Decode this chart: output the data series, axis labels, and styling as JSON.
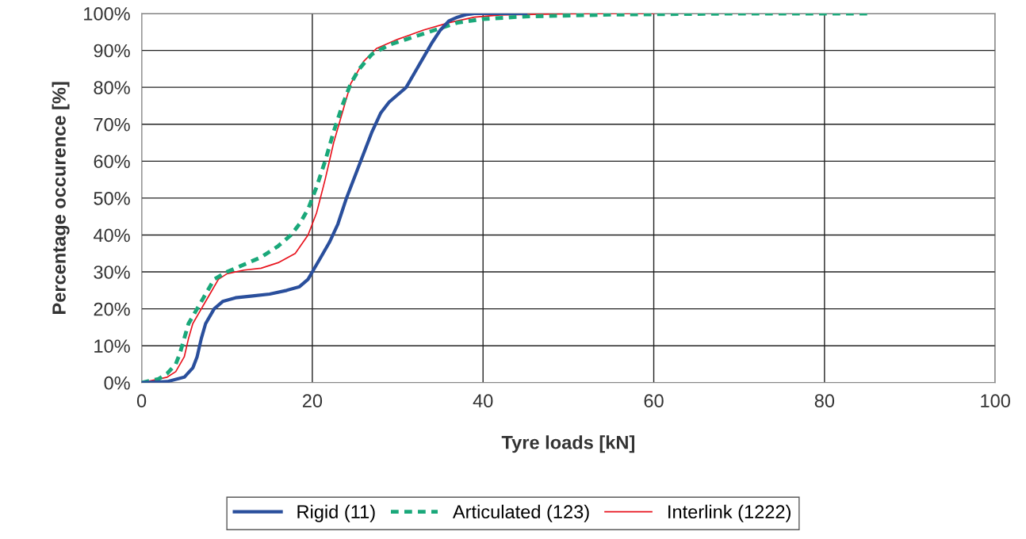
{
  "chart_data": {
    "type": "line",
    "xlabel": "Tyre loads [kN]",
    "ylabel": "Percentage occurence [%]",
    "xlim": [
      0,
      100
    ],
    "xticks": [
      0,
      20,
      40,
      60,
      80,
      100
    ],
    "ylim": [
      0,
      100
    ],
    "yticks": [
      {
        "value": 0,
        "label": "0%"
      },
      {
        "value": 10,
        "label": "10%"
      },
      {
        "value": 20,
        "label": "20%"
      },
      {
        "value": 30,
        "label": "30%"
      },
      {
        "value": 40,
        "label": "40%"
      },
      {
        "value": 50,
        "label": "50%"
      },
      {
        "value": 60,
        "label": "60%"
      },
      {
        "value": 70,
        "label": "70%"
      },
      {
        "value": 80,
        "label": "80%"
      },
      {
        "value": 90,
        "label": "90%"
      },
      {
        "value": 100,
        "label": "100%"
      }
    ],
    "grid": true,
    "legend": "bottom",
    "marker": "none",
    "series": [
      {
        "name": "Rigid (11)",
        "color": "#2a4f9c",
        "line_style": "solid",
        "x": [
          0,
          3,
          5,
          6,
          6.5,
          7,
          7.5,
          8.5,
          9.5,
          11,
          13,
          15,
          17,
          18.5,
          19.5,
          20,
          21,
          22,
          23,
          24,
          25,
          26,
          27,
          28,
          29,
          30,
          31,
          32,
          33,
          34,
          35,
          36,
          37,
          38,
          39,
          45
        ],
        "values": [
          0,
          0.3,
          1.5,
          4,
          7,
          12,
          16,
          20,
          22,
          23,
          23.5,
          24,
          25,
          26,
          28,
          30,
          34,
          38,
          43,
          50,
          56,
          62,
          68,
          73,
          76,
          78,
          80,
          84,
          88,
          92,
          95.5,
          98,
          99,
          99.7,
          100,
          100
        ]
      },
      {
        "name": "Articulated (123)",
        "color": "#1aa87a",
        "line_style": "dashed",
        "x": [
          0,
          2,
          3,
          4,
          4.5,
          5,
          5.5,
          6.5,
          7.5,
          8.5,
          10,
          12,
          14,
          16,
          17.5,
          18.5,
          19.5,
          20,
          20.5,
          21.5,
          22.5,
          23.5,
          24.5,
          25.5,
          27,
          29,
          31,
          33,
          35,
          37,
          40,
          45,
          55,
          70,
          85
        ],
        "values": [
          0,
          1,
          2.5,
          5,
          8,
          12,
          16,
          20,
          24,
          28,
          30,
          32,
          34,
          37,
          40,
          43,
          47,
          50,
          53,
          60,
          68,
          75,
          81,
          85,
          89,
          91.5,
          93,
          94.5,
          96,
          97.5,
          98.5,
          99.2,
          99.7,
          100,
          100
        ]
      },
      {
        "name": "Interlink (1222)",
        "color": "#e8141e",
        "line_style": "solid",
        "x": [
          0,
          3,
          4,
          5,
          5.5,
          6,
          7,
          8,
          9,
          10,
          12,
          14,
          16,
          18,
          19.5,
          20.5,
          21.5,
          22.5,
          23.5,
          24.5,
          26,
          27.5,
          30,
          33,
          36,
          39,
          42,
          50,
          60
        ],
        "values": [
          0,
          1.5,
          3,
          7,
          12,
          16,
          20,
          24,
          28,
          29.5,
          30.5,
          31,
          32.5,
          35,
          40,
          46,
          55,
          65,
          73,
          81,
          87,
          90.5,
          93,
          95.5,
          97.5,
          99,
          99.6,
          99.9,
          100
        ]
      }
    ]
  }
}
